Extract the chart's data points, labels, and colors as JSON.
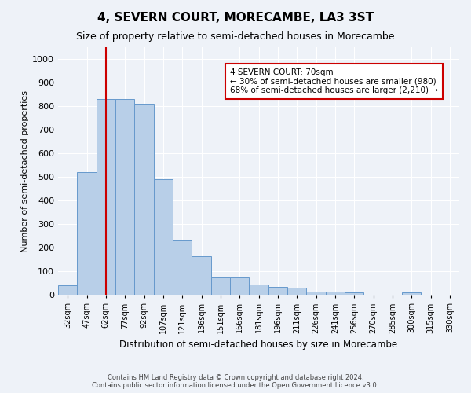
{
  "title": "4, SEVERN COURT, MORECAMBE, LA3 3ST",
  "subtitle": "Size of property relative to semi-detached houses in Morecambe",
  "xlabel": "Distribution of semi-detached houses by size in Morecambe",
  "ylabel": "Number of semi-detached properties",
  "bar_labels": [
    "32sqm",
    "47sqm",
    "62sqm",
    "77sqm",
    "92sqm",
    "107sqm",
    "121sqm",
    "136sqm",
    "151sqm",
    "166sqm",
    "181sqm",
    "196sqm",
    "211sqm",
    "226sqm",
    "241sqm",
    "256sqm",
    "270sqm",
    "285sqm",
    "300sqm",
    "315sqm",
    "330sqm"
  ],
  "bar_values": [
    40,
    520,
    830,
    830,
    810,
    490,
    235,
    165,
    75,
    75,
    45,
    35,
    30,
    15,
    15,
    10,
    0,
    0,
    10,
    0,
    0
  ],
  "bar_color": "#b8cfe8",
  "bar_edge_color": "#6699cc",
  "vline_x_index": 2,
  "vline_color": "#cc0000",
  "annotation_text": "4 SEVERN COURT: 70sqm\n← 30% of semi-detached houses are smaller (980)\n68% of semi-detached houses are larger (2,210) →",
  "annotation_box_color": "#ffffff",
  "annotation_box_edge": "#cc0000",
  "ylim": [
    0,
    1050
  ],
  "yticks": [
    0,
    100,
    200,
    300,
    400,
    500,
    600,
    700,
    800,
    900,
    1000
  ],
  "footer_line1": "Contains HM Land Registry data © Crown copyright and database right 2024.",
  "footer_line2": "Contains public sector information licensed under the Open Government Licence v3.0.",
  "background_color": "#eef2f8",
  "grid_color": "#ffffff",
  "title_fontsize": 11,
  "subtitle_fontsize": 9,
  "xlabel_fontsize": 8.5,
  "ylabel_fontsize": 8
}
